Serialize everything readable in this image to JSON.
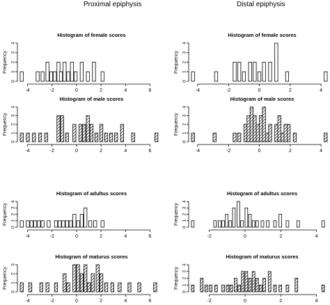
{
  "columns": [
    "Proximal epiphysis",
    "Distal epiphysis"
  ],
  "chart_data": [
    {
      "type": "bar",
      "column": "Proximal epiphysis",
      "title": "Histogram of female scores",
      "ylabel": "Frequency",
      "xlim": [
        -4.6,
        6.6
      ],
      "ylim": [
        0,
        4
      ],
      "xticks": [
        -4,
        -2,
        0,
        2,
        4,
        6
      ],
      "yticks": [
        0,
        1,
        2,
        3,
        4
      ],
      "hatched": false,
      "bin_width": 0.25,
      "bins": [
        [
          -4.6,
          1
        ],
        [
          -3.3,
          1
        ],
        [
          -2.9,
          1
        ],
        [
          -2.5,
          2
        ],
        [
          -2.2,
          1
        ],
        [
          -1.9,
          1
        ],
        [
          -1.6,
          2
        ],
        [
          -1.4,
          1
        ],
        [
          -1.1,
          2
        ],
        [
          -0.8,
          1
        ],
        [
          -0.5,
          2
        ],
        [
          -0.2,
          1
        ],
        [
          0.3,
          2
        ],
        [
          0.8,
          1
        ],
        [
          1.3,
          2
        ],
        [
          2.0,
          1
        ]
      ]
    },
    {
      "type": "bar",
      "column": "Proximal epiphysis",
      "title": "Histogram of male scores",
      "ylabel": "Frequency",
      "xlim": [
        -4.6,
        6.6
      ],
      "ylim": [
        0,
        4
      ],
      "xticks": [
        -4,
        -2,
        0,
        2,
        4,
        6
      ],
      "yticks": [
        0,
        1,
        2,
        3,
        4
      ],
      "hatched": true,
      "bin_width": 0.25,
      "bins": [
        [
          -4.6,
          1
        ],
        [
          -4.1,
          1
        ],
        [
          -3.6,
          1
        ],
        [
          -3.1,
          1
        ],
        [
          -2.6,
          1
        ],
        [
          -1.6,
          3
        ],
        [
          -1.3,
          3
        ],
        [
          -0.9,
          1
        ],
        [
          -0.3,
          2
        ],
        [
          0.2,
          2
        ],
        [
          0.5,
          2
        ],
        [
          0.8,
          3
        ],
        [
          1.1,
          2
        ],
        [
          1.5,
          1
        ],
        [
          1.9,
          2
        ],
        [
          2.3,
          1
        ],
        [
          2.7,
          1
        ],
        [
          3.1,
          1
        ],
        [
          3.6,
          2
        ],
        [
          4.5,
          1
        ],
        [
          6.4,
          1
        ]
      ]
    },
    {
      "type": "bar",
      "column": "Distal epiphysis",
      "title": "Histogram of female scores",
      "ylabel": "Frequency",
      "xlim": [
        -4.4,
        4.4
      ],
      "ylim": [
        0,
        4
      ],
      "xticks": [
        -4,
        -2,
        0,
        2,
        4
      ],
      "yticks": [
        0,
        1,
        2,
        3,
        4
      ],
      "hatched": false,
      "bin_width": 0.2,
      "bins": [
        [
          -4.4,
          1
        ],
        [
          -2.9,
          1
        ],
        [
          -1.7,
          2
        ],
        [
          -1.4,
          2
        ],
        [
          -1.1,
          1
        ],
        [
          -0.7,
          2
        ],
        [
          -0.4,
          2
        ],
        [
          -0.1,
          1
        ],
        [
          0.2,
          2
        ],
        [
          0.6,
          2
        ],
        [
          1.0,
          4
        ],
        [
          1.7,
          1
        ],
        [
          4.2,
          1
        ]
      ]
    },
    {
      "type": "bar",
      "column": "Distal epiphysis",
      "title": "Histogram of male scores",
      "ylabel": "Frequency",
      "xlim": [
        -4.4,
        4.4
      ],
      "ylim": [
        0,
        4
      ],
      "xticks": [
        -4,
        -2,
        0,
        2,
        4
      ],
      "yticks": [
        0,
        1,
        2,
        3,
        4
      ],
      "hatched": true,
      "bin_width": 0.2,
      "bins": [
        [
          -4.4,
          1
        ],
        [
          -3.0,
          1
        ],
        [
          -1.7,
          1
        ],
        [
          -1.4,
          1
        ],
        [
          -1.0,
          2
        ],
        [
          -0.8,
          3
        ],
        [
          -0.6,
          4
        ],
        [
          -0.4,
          3
        ],
        [
          -0.2,
          2
        ],
        [
          0.0,
          3
        ],
        [
          0.2,
          4
        ],
        [
          0.4,
          1
        ],
        [
          0.6,
          2
        ],
        [
          1.0,
          2
        ],
        [
          1.2,
          3
        ],
        [
          1.4,
          1
        ],
        [
          1.6,
          2
        ],
        [
          1.8,
          2
        ],
        [
          2.2,
          1
        ],
        [
          4.2,
          1
        ]
      ]
    },
    {
      "type": "bar",
      "column": "Proximal epiphysis",
      "title": "Histogram of adultus scores",
      "ylabel": "Frequency",
      "xlim": [
        -4.6,
        6.6
      ],
      "ylim": [
        0,
        4
      ],
      "xticks": [
        -4,
        -2,
        0,
        2,
        4,
        6
      ],
      "yticks": [
        0,
        1,
        2,
        3,
        4
      ],
      "hatched": false,
      "bin_width": 0.25,
      "bins": [
        [
          -4.6,
          1
        ],
        [
          -4.1,
          1
        ],
        [
          -3.8,
          1
        ],
        [
          -3.5,
          1
        ],
        [
          -3.2,
          1
        ],
        [
          -2.9,
          1
        ],
        [
          -2.4,
          1
        ],
        [
          -1.8,
          1
        ],
        [
          -1.5,
          1
        ],
        [
          -1.2,
          1
        ],
        [
          -0.9,
          1
        ],
        [
          -0.6,
          1
        ],
        [
          -0.3,
          2
        ],
        [
          0.0,
          1
        ],
        [
          0.3,
          2
        ],
        [
          0.6,
          3
        ],
        [
          1.0,
          1
        ],
        [
          1.4,
          1
        ],
        [
          2.0,
          1
        ]
      ]
    },
    {
      "type": "bar",
      "column": "Distal epiphysis",
      "title": "Histogram of adultus scores",
      "ylabel": "Frequency",
      "xlim": [
        -3.0,
        4.6
      ],
      "ylim": [
        0,
        4
      ],
      "xticks": [
        -2,
        0,
        2,
        4
      ],
      "yticks": [
        0,
        1,
        2,
        3,
        4
      ],
      "hatched": false,
      "bin_width": 0.15,
      "bins": [
        [
          -3.0,
          1
        ],
        [
          -1.75,
          1
        ],
        [
          -1.5,
          1
        ],
        [
          -1.3,
          1
        ],
        [
          -1.1,
          2
        ],
        [
          -0.9,
          1
        ],
        [
          -0.7,
          3
        ],
        [
          -0.45,
          4
        ],
        [
          -0.25,
          1
        ],
        [
          0.0,
          3
        ],
        [
          0.2,
          2
        ],
        [
          0.4,
          1
        ],
        [
          0.6,
          1
        ],
        [
          0.9,
          1
        ],
        [
          1.2,
          1
        ],
        [
          1.6,
          1
        ],
        [
          1.9,
          2
        ],
        [
          2.3,
          1
        ],
        [
          2.9,
          1
        ],
        [
          4.3,
          1
        ]
      ]
    },
    {
      "type": "bar",
      "column": "Proximal epiphysis",
      "title": "Histogram of maturus scores",
      "ylabel": "Frequency",
      "xlim": [
        -4.6,
        6.6
      ],
      "ylim": [
        0,
        3
      ],
      "xticks": [
        -4,
        -2,
        0,
        2,
        4,
        6
      ],
      "yticks": [
        0,
        1,
        2,
        3
      ],
      "hatched": true,
      "bin_width": 0.25,
      "bins": [
        [
          -4.6,
          1
        ],
        [
          -3.9,
          1
        ],
        [
          -3.0,
          1
        ],
        [
          -2.5,
          1
        ],
        [
          -1.8,
          1
        ],
        [
          -1.1,
          2
        ],
        [
          -0.8,
          1
        ],
        [
          -0.3,
          3
        ],
        [
          0.0,
          3
        ],
        [
          0.3,
          2
        ],
        [
          0.6,
          3
        ],
        [
          0.9,
          1
        ],
        [
          1.2,
          2
        ],
        [
          1.6,
          3
        ],
        [
          1.9,
          2
        ],
        [
          2.3,
          1
        ],
        [
          2.8,
          1
        ],
        [
          3.4,
          1
        ],
        [
          4.2,
          1
        ],
        [
          5.0,
          1
        ],
        [
          6.3,
          1
        ]
      ]
    },
    {
      "type": "bar",
      "column": "Distal epiphysis",
      "title": "Histogram of maturus scores",
      "ylabel": "Frequency",
      "xlim": [
        -3.0,
        4.6
      ],
      "ylim": [
        0,
        4
      ],
      "xticks": [
        -2,
        0,
        2,
        4
      ],
      "yticks": [
        0,
        1,
        2,
        3,
        4
      ],
      "hatched": true,
      "bin_width": 0.15,
      "bins": [
        [
          -3.0,
          1
        ],
        [
          -2.5,
          2
        ],
        [
          -2.25,
          1
        ],
        [
          -2.0,
          1
        ],
        [
          -1.7,
          1
        ],
        [
          -1.3,
          1
        ],
        [
          -1.05,
          1
        ],
        [
          -0.85,
          1
        ],
        [
          -0.6,
          2
        ],
        [
          -0.4,
          1
        ],
        [
          -0.2,
          3
        ],
        [
          0.0,
          3
        ],
        [
          0.2,
          2
        ],
        [
          0.4,
          3
        ],
        [
          0.6,
          2
        ],
        [
          0.8,
          1
        ],
        [
          1.0,
          2
        ],
        [
          1.3,
          3
        ],
        [
          1.6,
          1
        ],
        [
          1.9,
          1
        ],
        [
          2.3,
          1
        ],
        [
          2.8,
          2
        ],
        [
          4.3,
          1
        ]
      ]
    }
  ]
}
